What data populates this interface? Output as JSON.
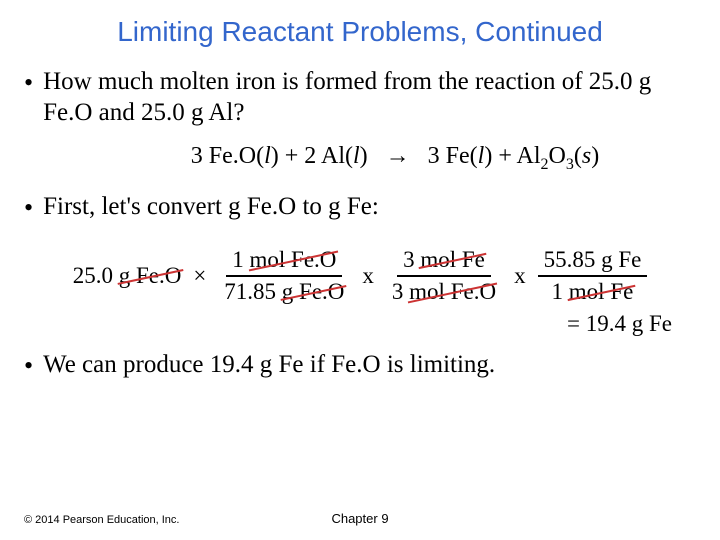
{
  "title": "Limiting Reactant Problems, Continued",
  "bullet1": "How much molten iron is formed from the reaction of 25.0 g Fe.O and 25.0 g Al?",
  "equation": {
    "lhs1": "3 Fe.O(",
    "lhs1_ital": "l",
    "lhs1_close": ") + 2 Al(",
    "lhs2_ital": "l",
    "lhs2_close": ")",
    "arrow": "→",
    "rhs1": "3 Fe(",
    "rhs1_ital": "l",
    "rhs1_close": ") + Al",
    "sub2": "2",
    "rhs2": "O",
    "sub3": "3",
    "rhs3": "(",
    "rhs3_ital": "s",
    "rhs3_close": ")"
  },
  "bullet2": "First, let's convert g Fe.O to g Fe:",
  "dim": {
    "start_val": "25.0",
    "start_unit": "g Fe.O",
    "mult": "×",
    "x": "x",
    "frac1_num_val": "1",
    "frac1_num_unit": "mol Fe.O",
    "frac1_den": "71.85",
    "frac1_den_unit": "g Fe.O",
    "frac2_num_val": "3",
    "frac2_num_unit": "mol Fe",
    "frac2_den_val": "3",
    "frac2_den_unit": "mol Fe.O",
    "frac3_num": "55.85 g Fe",
    "frac3_den_val": "1",
    "frac3_den_unit": "mol Fe"
  },
  "result": "= 19.4 g Fe",
  "bullet3": "We can produce 19.4 g Fe if Fe.O is limiting.",
  "copyright": "© 2014 Pearson Education, Inc.",
  "chapter": "Chapter 9",
  "colors": {
    "title_color": "#3366cc",
    "strike_color": "#cc3333",
    "bg": "#ffffff"
  }
}
